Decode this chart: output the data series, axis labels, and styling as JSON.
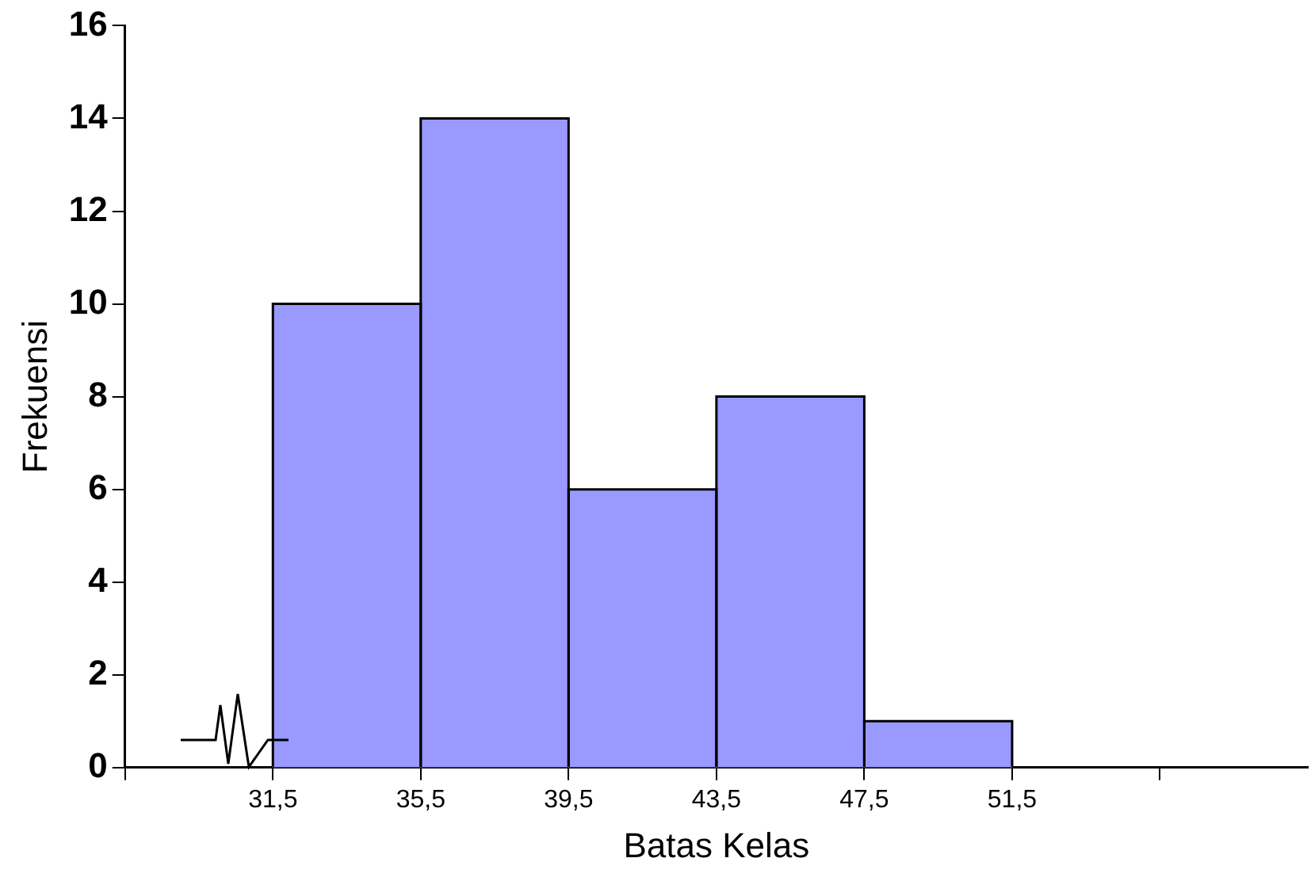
{
  "chart_data": {
    "type": "histogram",
    "xlabel": "Batas Kelas",
    "ylabel": "Frekuensi",
    "bins": [
      31.5,
      35.5,
      39.5,
      43.5,
      47.5,
      51.5
    ],
    "values": [
      10,
      14,
      6,
      8,
      1
    ],
    "color": "#9999ff",
    "xlim": [
      27.5,
      59.5
    ],
    "xticks": [
      {
        "value": 27.5,
        "label": null
      },
      {
        "value": 31.5,
        "label": "31,5"
      },
      {
        "value": 35.5,
        "label": "35,5"
      },
      {
        "value": 39.5,
        "label": "39,5"
      },
      {
        "value": 43.5,
        "label": "43,5"
      },
      {
        "value": 47.5,
        "label": "47,5"
      },
      {
        "value": 51.5,
        "label": "51,5"
      },
      {
        "value": 55.5,
        "label": null
      }
    ],
    "ylim": [
      0,
      16
    ],
    "yticks": [
      0,
      2,
      4,
      6,
      8,
      10,
      12,
      14,
      16
    ]
  }
}
